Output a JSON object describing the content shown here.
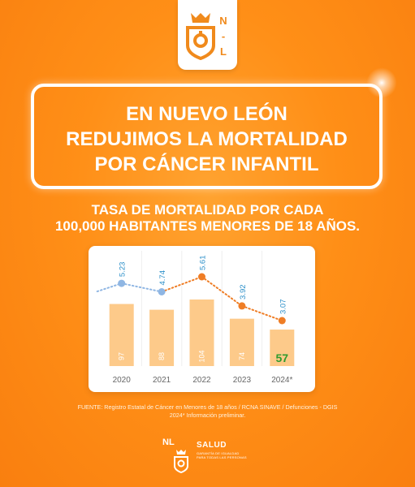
{
  "logo": {
    "letters": [
      "N",
      "-",
      "L"
    ]
  },
  "headline": {
    "lines": [
      "EN NUEVO LEÓN",
      "REDUJIMOS LA MORTALIDAD",
      "POR CÁNCER INFANTIL"
    ]
  },
  "subtitle": {
    "lines": [
      "TASA DE MORTALIDAD POR CADA",
      "100,000 HABITANTES MENORES DE 18 AÑOS."
    ]
  },
  "source": {
    "lines": [
      "FUENTE: Registro Estatal de Cáncer en Menores de 18 años / RCNA SINAVE / Defunciones - DGIS",
      "2024* Información preliminar."
    ]
  },
  "footer": {
    "badge": "NL",
    "brand": "SALUD",
    "tagline": [
      "GARANTÍA DE IGUALDAD",
      "PARA TODAS LAS PERSONAS"
    ]
  },
  "colors": {
    "background": "#ff8f17",
    "bar": "#fdca8a",
    "rate_blue": "#2b8fc9",
    "rate_orange": "#ef7d25",
    "point_blue": "#8fb6e3",
    "count_highlight": "#2e9b2e"
  },
  "chart_data": {
    "type": "bar",
    "categories": [
      "2020",
      "2021",
      "2022",
      "2023",
      "2024*"
    ],
    "series": [
      {
        "values": [
          97,
          88,
          104,
          74,
          57
        ]
      },
      {
        "values": [
          5.23,
          4.74,
          5.61,
          3.92,
          3.07
        ]
      }
    ],
    "line_series_index": 1,
    "grid": false,
    "legend": "none"
  }
}
